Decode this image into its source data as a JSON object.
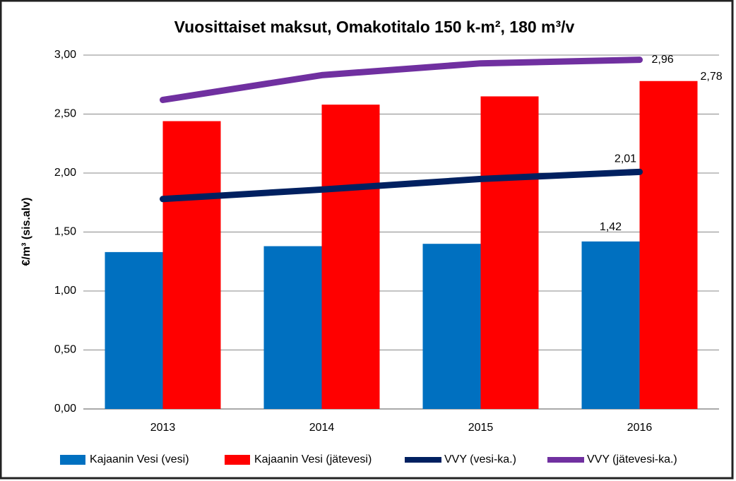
{
  "chart_data": {
    "type": "bar",
    "title": "Vuosittaiset maksut, Omakotitalo 150 k-m², 180 m³/v",
    "y_label": "€/m³ (sis.alv)",
    "categories": [
      "2013",
      "2014",
      "2015",
      "2016"
    ],
    "series": [
      {
        "name": "Kajaanin Vesi (vesi)",
        "type": "bar",
        "color": "#0070c0",
        "values": [
          1.33,
          1.38,
          1.4,
          1.42
        ],
        "value_labels": [
          null,
          null,
          null,
          "1,42"
        ]
      },
      {
        "name": "Kajaanin Vesi (jätevesi)",
        "type": "bar",
        "color": "#ff0000",
        "values": [
          2.44,
          2.58,
          2.65,
          2.78
        ],
        "value_labels": [
          null,
          null,
          null,
          "2,78"
        ]
      },
      {
        "name": "VVY (vesi-ka.)",
        "type": "line",
        "color": "#002060",
        "values": [
          1.78,
          1.86,
          1.95,
          2.01
        ],
        "value_labels": [
          null,
          null,
          null,
          "2,01"
        ]
      },
      {
        "name": "VVY (jätevesi-ka.)",
        "type": "line",
        "color": "#7030a0",
        "values": [
          2.62,
          2.83,
          2.93,
          2.96
        ],
        "value_labels": [
          null,
          null,
          null,
          "2,96"
        ]
      }
    ],
    "ylim": [
      0,
      3
    ],
    "yticks": [
      {
        "value": 0,
        "label": "0,00"
      },
      {
        "value": 0.5,
        "label": "0,50"
      },
      {
        "value": 1,
        "label": "1,00"
      },
      {
        "value": 1.5,
        "label": "1,50"
      },
      {
        "value": 2,
        "label": "2,00"
      },
      {
        "value": 2.5,
        "label": "2,50"
      },
      {
        "value": 3,
        "label": "3,00"
      }
    ],
    "grid": true,
    "legend": "bottom"
  }
}
